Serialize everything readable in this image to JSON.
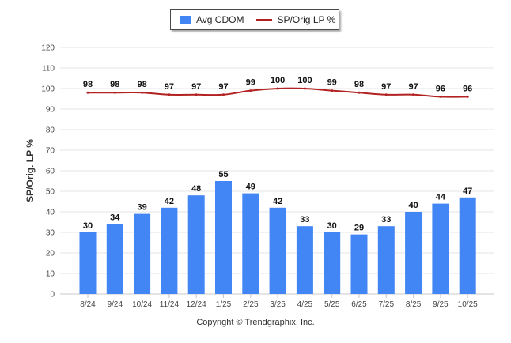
{
  "chart_data": {
    "type": "bar+line",
    "categories": [
      "8/24",
      "9/24",
      "10/24",
      "11/24",
      "12/24",
      "1/25",
      "2/25",
      "3/25",
      "4/25",
      "5/25",
      "6/25",
      "7/25",
      "8/25",
      "9/25",
      "10/25"
    ],
    "series": [
      {
        "name": "Avg CDOM",
        "kind": "bar",
        "color": "#4285f4",
        "values": [
          30,
          34,
          39,
          42,
          48,
          55,
          49,
          42,
          33,
          30,
          29,
          33,
          40,
          44,
          47
        ]
      },
      {
        "name": "SP/Orig LP %",
        "kind": "line",
        "color": "#b22222",
        "values": [
          98,
          98,
          98,
          97,
          97,
          97,
          99,
          100,
          100,
          99,
          98,
          97,
          97,
          96,
          96
        ]
      }
    ],
    "ylabel": "SP/Orig. LP %",
    "ylim": [
      0,
      120
    ],
    "yticks": [
      0,
      10,
      20,
      30,
      40,
      50,
      60,
      70,
      80,
      90,
      100,
      110,
      120
    ],
    "grid": true,
    "legend_position": "top-center"
  },
  "legend": {
    "bar_label": "Avg CDOM",
    "line_label": "SP/Orig LP %"
  },
  "footer": {
    "copyright": "Copyright © Trendgraphix, Inc."
  }
}
